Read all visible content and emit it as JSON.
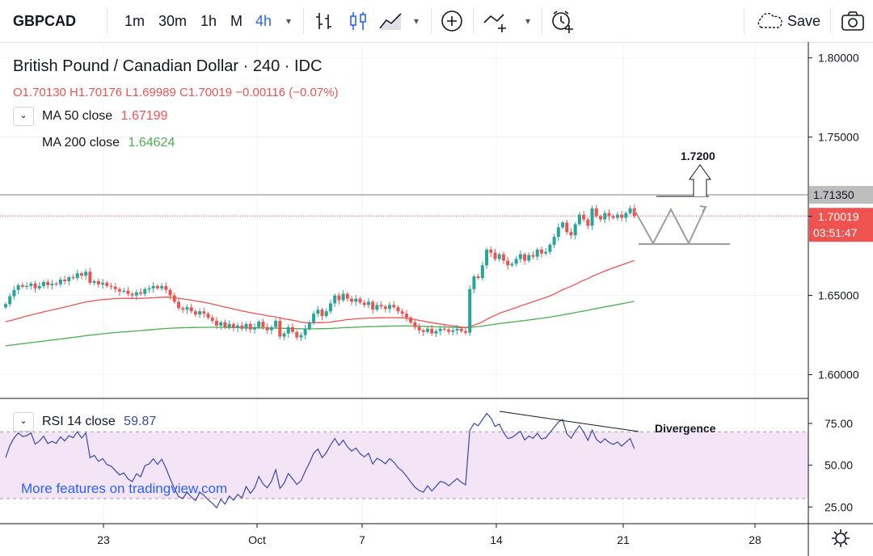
{
  "toolbar": {
    "symbol": "GBPCAD",
    "intervals": [
      "1m",
      "30m",
      "1h",
      "M",
      "4h"
    ],
    "active_interval": "4h",
    "save_label": "Save"
  },
  "legend": {
    "title": "British Pound / Canadian Dollar · 240 · IDC",
    "ohlc": "O1.70130 H1.70176 L1.69989 C1.70019 −0.00116 (−0.07%)",
    "ma50_label": "MA 50 close",
    "ma50_value": "1.67199",
    "ma200_label": "MA 200 close",
    "ma200_value": "1.64624",
    "rsi_label": "RSI 14 close",
    "rsi_value": "59.87",
    "promo": "More features on tradingview.com"
  },
  "annotations": {
    "target": "1.7200",
    "divergence": "Divergence"
  },
  "price_axis": {
    "ticks": [
      "1.80000",
      "1.75000",
      "1.65000",
      "1.60000"
    ],
    "resistance_label": "1.71350",
    "last_price_label": "1.70019",
    "countdown": "03:51:47"
  },
  "rsi_axis": {
    "ticks": [
      "75.00",
      "50.00",
      "25.00"
    ]
  },
  "time_axis": {
    "ticks": [
      "23",
      "Oct",
      "7",
      "14",
      "21",
      "28"
    ]
  },
  "colors": {
    "up": "#26a69a",
    "down": "#ef5350",
    "ma50": "#ef5350",
    "ma200": "#4caf50",
    "rsi": "#3949ab",
    "rsi_band": "#f3e5f5",
    "accent": "#2962ff"
  },
  "chart_data": {
    "type": "candlestick",
    "title": "British Pound / Canadian Dollar · 240 · IDC",
    "price_range": [
      1.585,
      1.81
    ],
    "rsi_range": [
      15,
      90
    ],
    "resistance": 1.7135,
    "target": 1.72,
    "last_close": 1.70019,
    "ma50_last": 1.67199,
    "ma200_last": 1.64624,
    "rsi_last": 59.87,
    "rsi_band": [
      30,
      70
    ],
    "x_ticks": [
      "23",
      "Oct",
      "7",
      "14",
      "21",
      "28"
    ],
    "closes": [
      1.6445,
      1.6495,
      1.6535,
      1.6565,
      1.6555,
      1.656,
      1.6575,
      1.6545,
      1.656,
      1.6585,
      1.6565,
      1.6575,
      1.657,
      1.66,
      1.659,
      1.6615,
      1.661,
      1.664,
      1.6625,
      1.665,
      1.658,
      1.659,
      1.657,
      1.658,
      1.656,
      1.6555,
      1.654,
      1.6525,
      1.653,
      1.651,
      1.65,
      1.652,
      1.651,
      1.654,
      1.6545,
      1.656,
      1.6545,
      1.656,
      1.6535,
      1.65,
      1.646,
      1.642,
      1.641,
      1.6425,
      1.64,
      1.638,
      1.64,
      1.6385,
      1.636,
      1.634,
      1.631,
      1.633,
      1.63,
      1.632,
      1.6295,
      1.631,
      1.629,
      1.632,
      1.6285,
      1.63,
      1.6335,
      1.63,
      1.628,
      1.63,
      1.634,
      1.624,
      1.626,
      1.63,
      1.627,
      1.6235,
      1.625,
      1.629,
      1.633,
      1.6385,
      1.641,
      1.637,
      1.64,
      1.645,
      1.65,
      1.647,
      1.651,
      1.648,
      1.646,
      1.648,
      1.6455,
      1.644,
      1.646,
      1.641,
      1.644,
      1.643,
      1.6415,
      1.644,
      1.6425,
      1.64,
      1.6385,
      1.636,
      1.633,
      1.63,
      1.628,
      1.627,
      1.629,
      1.626,
      1.6275,
      1.629,
      1.6285,
      1.627,
      1.628,
      1.629,
      1.6275,
      1.6265,
      1.654,
      1.662,
      1.661,
      1.669,
      1.679,
      1.677,
      1.673,
      1.676,
      1.672,
      1.669,
      1.67,
      1.673,
      1.676,
      1.672,
      1.6755,
      1.6745,
      1.679,
      1.6765,
      1.6775,
      1.682,
      1.687,
      1.693,
      1.696,
      1.69,
      1.688,
      1.695,
      1.701,
      1.698,
      1.694,
      1.705,
      1.7,
      1.698,
      1.702,
      1.7,
      1.699,
      1.701,
      1.699,
      1.702,
      1.705,
      1.7002
    ]
  }
}
